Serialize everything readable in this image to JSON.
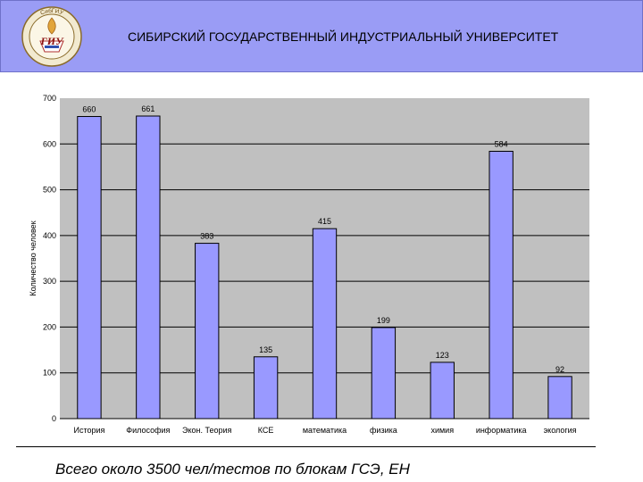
{
  "header": {
    "title": "СИБИРСКИЙ ГОСУДАРСТВЕННЫЙ ИНДУСТРИАЛЬНЫЙ УНИВЕРСИТЕТ",
    "logo_text": "СибГИУ",
    "logo_monogram": "ГИУ"
  },
  "footer": {
    "text": "Всего около 3500 чел/тестов по блокам ГСЭ, ЕН"
  },
  "colors": {
    "header_bg": "#9a9cf5",
    "plot_bg": "#c0c0c0",
    "bar_fill": "#9999ff",
    "bar_stroke": "#000000"
  },
  "chart_data": {
    "type": "bar",
    "title": "",
    "xlabel": "",
    "ylabel": "Количество человек",
    "ylim": [
      0,
      700
    ],
    "yticks": [
      0,
      100,
      200,
      300,
      400,
      500,
      600,
      700
    ],
    "grid": "horizontal",
    "categories": [
      "История",
      "Философия",
      "Экон. Теория",
      "КСЕ",
      "математика",
      "физика",
      "химия",
      "информатика",
      "экология"
    ],
    "values": [
      660,
      661,
      383,
      135,
      415,
      199,
      123,
      584,
      92
    ]
  }
}
